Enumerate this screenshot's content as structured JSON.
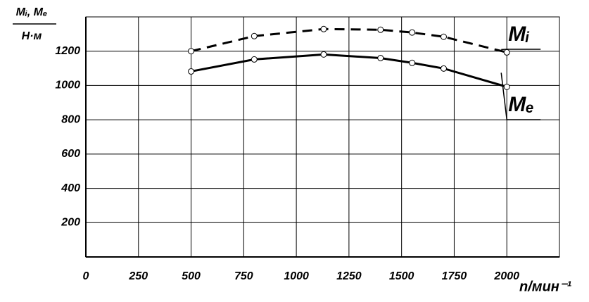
{
  "chart_data": {
    "type": "line",
    "y_label": "Mᵢ, Mₑ",
    "y_unit": "Н·м",
    "x_label": "n/мин⁻¹",
    "xlim": [
      0,
      2250
    ],
    "xticks": [
      0,
      250,
      500,
      750,
      1000,
      1250,
      1500,
      1750,
      2000
    ],
    "ylim": [
      0,
      1400
    ],
    "yticks": [
      200,
      400,
      600,
      800,
      1000,
      1200
    ],
    "grid": true,
    "series": [
      {
        "name": "Mᵢ",
        "color": "#000000",
        "style": "dashed",
        "x": [
          500,
          800,
          1130,
          1400,
          1550,
          1700,
          2000
        ],
        "values": [
          1200,
          1288,
          1329,
          1325,
          1309,
          1284,
          1193
        ]
      },
      {
        "name": "Mₑ",
        "color": "#000000",
        "style": "solid",
        "x": [
          500,
          800,
          1130,
          1400,
          1550,
          1700,
          2000
        ],
        "values": [
          1082,
          1152,
          1181,
          1160,
          1132,
          1099,
          992
        ]
      }
    ]
  }
}
